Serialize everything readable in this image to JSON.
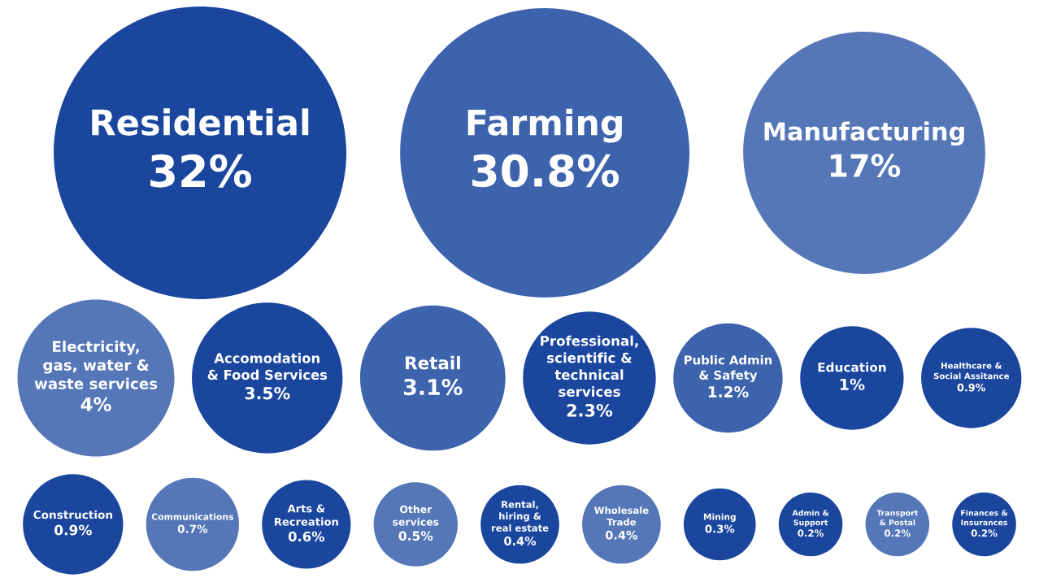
{
  "chart_data": {
    "type": "other",
    "categories": [
      "Residential",
      "Farming",
      "Manufacturing",
      "Electricity,\ngas, water &\nwaste services",
      "Accomodation\n& Food Services",
      "Retail",
      "Professional,\nscientific &\ntechnical\nservices",
      "Public Admin\n& Safety",
      "Education",
      "Healthcare &\nSocial Assitance",
      "Construction",
      "Communications",
      "Arts &\nRecreation",
      "Other\nservices",
      "Rental,\nhiring &\nreal estate",
      "Wholesale\nTrade",
      "Mining",
      "Admin &\nSupport",
      "Transport\n& Postal",
      "Finances &\nInsurances"
    ],
    "values": [
      32,
      30.8,
      17,
      4,
      3.5,
      3.1,
      2.3,
      1.2,
      1,
      0.9,
      0.9,
      0.7,
      0.6,
      0.5,
      0.4,
      0.4,
      0.3,
      0.2,
      0.2,
      0.2
    ],
    "value_labels": [
      "32%",
      "30.8%",
      "17%",
      "4%",
      "3.5%",
      "3.1%",
      "2.3%",
      "1.2%",
      "1%",
      "0.9%",
      "0.9%",
      "0.7%",
      "0.6%",
      "0.5%",
      "0.4%",
      "0.4%",
      "0.3%",
      "0.2%",
      "0.2%",
      "0.2%"
    ],
    "colors": [
      "#1b469e",
      "#3d63ad",
      "#5577b8",
      "#5577b8",
      "#1b469e",
      "#3d63ad",
      "#1b469e",
      "#3d63ad",
      "#1b469e",
      "#1b469e",
      "#1b469e",
      "#5577b8",
      "#1b469e",
      "#5577b8",
      "#1b469e",
      "#5577b8",
      "#1b469e",
      "#1b469e",
      "#5577b8",
      "#1b469e"
    ]
  }
}
